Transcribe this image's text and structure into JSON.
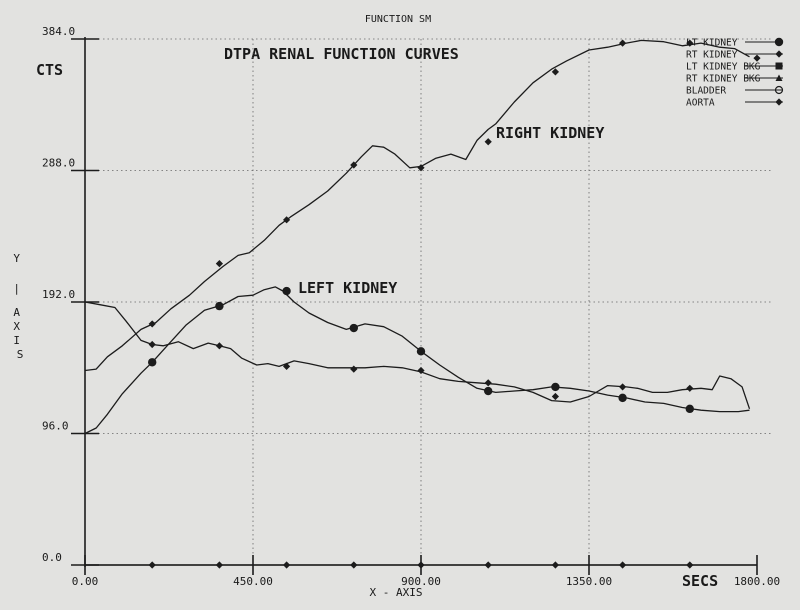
{
  "window_title": "FUNCTION SM",
  "chart_data": {
    "type": "line",
    "title": "DTPA RENAL FUNCTION CURVES",
    "ylabel": "CTS",
    "xlabel": "SECS",
    "x_axis_name": "X - AXIS",
    "y_axis_name": "Y | AXIS",
    "xlim": [
      0,
      1800
    ],
    "ylim": [
      0,
      384
    ],
    "x_ticks": [
      0,
      450,
      900,
      1350,
      1800
    ],
    "x_tick_labels": [
      "0.00",
      "450.00",
      "900.00",
      "1350.00",
      "1800.00"
    ],
    "y_ticks": [
      0,
      96,
      192,
      288,
      384
    ],
    "y_tick_labels": [
      "0.0",
      "96.0",
      "192.0",
      "288.0",
      "384.0"
    ],
    "grid": "dotted",
    "legend_position": "top-right",
    "legend": [
      {
        "label": "LT KIDNEY",
        "marker": "dot"
      },
      {
        "label": "RT KIDNEY",
        "marker": "diamond"
      },
      {
        "label": "LT KIDNEY BKG",
        "marker": "square"
      },
      {
        "label": "RT KIDNEY BKG",
        "marker": "triangle"
      },
      {
        "label": "BLADDER",
        "marker": "circle-open"
      },
      {
        "label": "AORTA",
        "marker": "diamond"
      }
    ],
    "annotations": [
      {
        "text": "RIGHT KIDNEY",
        "x": 1300,
        "y": 312
      },
      {
        "text": "LEFT KIDNEY",
        "x": 1300,
        "y": 196
      }
    ],
    "series": [
      {
        "name": "RT KIDNEY",
        "marker": "diamond",
        "x": [
          0,
          30,
          60,
          100,
          150,
          190,
          230,
          280,
          320,
          370,
          410,
          440,
          480,
          520,
          550,
          600,
          650,
          700,
          740,
          770,
          800,
          830,
          870,
          900,
          940,
          980,
          1020,
          1050,
          1080,
          1100,
          1150,
          1200,
          1250,
          1290,
          1350,
          1400,
          1450,
          1490,
          1550,
          1600,
          1650,
          1700,
          1740,
          1780
        ],
        "y": [
          142,
          143,
          152,
          160,
          172,
          177,
          187,
          197,
          207,
          218,
          226,
          228,
          237,
          248,
          254,
          263,
          273,
          286,
          298,
          306,
          305,
          300,
          290,
          291,
          297,
          300,
          296,
          310,
          318,
          322,
          338,
          352,
          362,
          368,
          376,
          378,
          381,
          383,
          382,
          379,
          381,
          378,
          377,
          371
        ],
        "markers_x": [
          180,
          360,
          540,
          720,
          900,
          1080,
          1260,
          1440,
          1620,
          1800
        ],
        "markers_y": [
          176,
          220,
          252,
          292,
          290,
          309,
          360,
          381,
          381,
          370
        ]
      },
      {
        "name": "LT KIDNEY",
        "marker": "dot",
        "x": [
          0,
          30,
          60,
          100,
          150,
          180,
          220,
          270,
          320,
          370,
          410,
          450,
          480,
          510,
          530,
          560,
          600,
          650,
          700,
          750,
          800,
          850,
          900,
          950,
          1000,
          1050,
          1100,
          1150,
          1200,
          1250,
          1300,
          1350,
          1400,
          1450,
          1500,
          1550,
          1600,
          1650,
          1700,
          1750,
          1780
        ],
        "y": [
          96,
          100,
          110,
          125,
          140,
          148,
          160,
          175,
          186,
          190,
          196,
          197,
          201,
          203,
          200,
          192,
          184,
          177,
          172,
          176,
          174,
          167,
          156,
          146,
          137,
          129,
          126,
          127,
          128,
          130,
          129,
          127,
          124,
          122,
          119,
          118,
          115,
          113,
          112,
          112,
          113
        ],
        "markers_x": [
          180,
          360,
          540,
          720,
          900,
          1080,
          1260,
          1440,
          1620
        ],
        "markers_y": [
          148,
          189,
          200,
          173,
          156,
          127,
          130,
          122,
          114
        ]
      },
      {
        "name": "AORTA",
        "marker": "diamond",
        "x": [
          0,
          40,
          80,
          110,
          150,
          180,
          210,
          250,
          290,
          330,
          360,
          390,
          420,
          460,
          490,
          520,
          560,
          600,
          650,
          700,
          750,
          800,
          850,
          900,
          950,
          1000,
          1050,
          1100,
          1150,
          1200,
          1250,
          1300,
          1350,
          1400,
          1450,
          1480,
          1520,
          1560,
          1600,
          1650,
          1680,
          1700,
          1730,
          1760,
          1780
        ],
        "y": [
          192,
          190,
          188,
          178,
          164,
          161,
          160,
          163,
          158,
          162,
          160,
          158,
          151,
          146,
          147,
          145,
          149,
          147,
          144,
          144,
          144,
          145,
          144,
          141,
          136,
          134,
          133,
          132,
          130,
          126,
          120,
          119,
          123,
          131,
          130,
          129,
          126,
          126,
          128,
          129,
          128,
          138,
          136,
          130,
          114
        ],
        "markers_x": [
          180,
          360,
          540,
          720,
          900,
          1080,
          1260,
          1440,
          1620
        ],
        "markers_y": [
          161,
          160,
          145,
          143,
          142,
          133,
          123,
          130,
          129
        ]
      },
      {
        "name": "BLADDER",
        "marker": "dot",
        "x": [
          0,
          1800
        ],
        "y": [
          0,
          0
        ],
        "markers_x": [
          180,
          360,
          540,
          720,
          900,
          1080,
          1260,
          1440,
          1620
        ],
        "markers_y": [
          0,
          0,
          0,
          0,
          0,
          0,
          0,
          0,
          0
        ]
      }
    ]
  }
}
